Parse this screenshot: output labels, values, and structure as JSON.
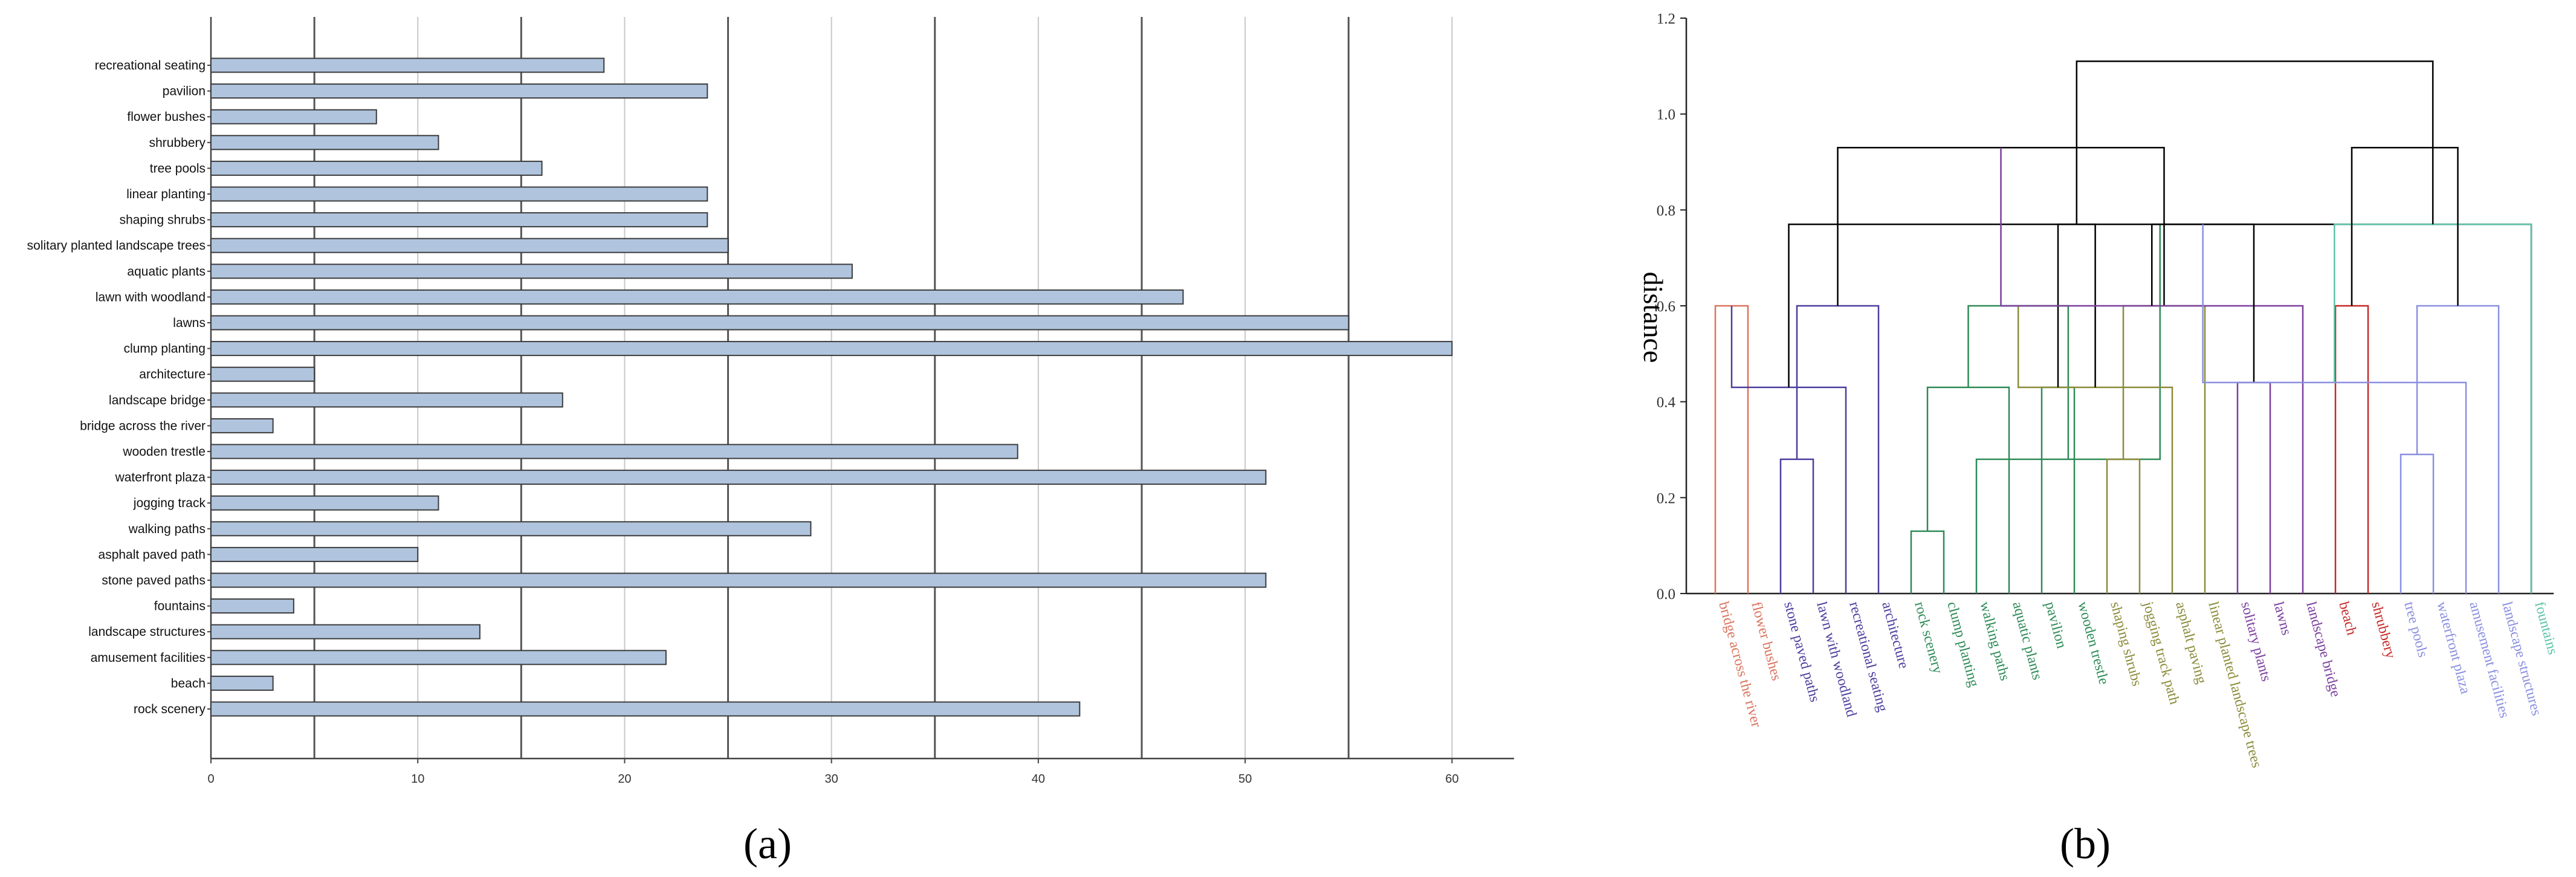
{
  "panels": {
    "a": "(a)",
    "b": "(b)"
  },
  "chart_data": [
    {
      "type": "bar",
      "orientation": "horizontal",
      "categories": [
        "recreational seating",
        "pavilion",
        "flower bushes",
        "shrubbery",
        "tree pools",
        "linear planting",
        "shaping shrubs",
        "solitary planted landscape trees",
        "aquatic plants",
        "lawn with woodland",
        "lawns",
        "clump planting",
        "architecture",
        "landscape bridge",
        "bridge across the river",
        "wooden trestle",
        "waterfront plaza",
        "jogging track",
        "walking paths",
        "asphalt paved path",
        "stone paved paths",
        "fountains",
        "landscape structures",
        "amusement facilities",
        "beach",
        "rock scenery"
      ],
      "values": [
        19,
        24,
        8,
        11,
        16,
        24,
        24,
        25,
        31,
        47,
        55,
        60,
        5,
        17,
        3,
        39,
        51,
        11,
        29,
        10,
        51,
        4,
        13,
        22,
        3,
        42
      ],
      "xlim": [
        0,
        63
      ],
      "xticks": [
        0,
        10,
        20,
        30,
        40,
        50,
        60
      ],
      "grid": "vertical every 5",
      "bar_color": "#b0c4de"
    },
    {
      "type": "dendrogram",
      "ylabel": "distance",
      "ylim": [
        0,
        1.2
      ],
      "yticks": [
        "0.0",
        "0.2",
        "0.4",
        "0.6",
        "0.8",
        "1.0",
        "1.2"
      ],
      "leaves": [
        {
          "label": "bridge across the river",
          "color": "#d9735c"
        },
        {
          "label": "flower bushes",
          "color": "#d9735c"
        },
        {
          "label": "stone paved paths",
          "color": "#4b3f9e"
        },
        {
          "label": "lawn with woodland",
          "color": "#4b3f9e"
        },
        {
          "label": "recreational seating",
          "color": "#4b3f9e"
        },
        {
          "label": "architecture",
          "color": "#4b3f9e"
        },
        {
          "label": "rock scenery",
          "color": "#2e8b57"
        },
        {
          "label": "clump planting",
          "color": "#2e8b57"
        },
        {
          "label": "walking paths",
          "color": "#2e8b57"
        },
        {
          "label": "aquatic plants",
          "color": "#2e8b57"
        },
        {
          "label": "pavilion",
          "color": "#2e8b57"
        },
        {
          "label": "wooden trestle",
          "color": "#2e8b57"
        },
        {
          "label": "shaping shrubs",
          "color": "#8b8b3a"
        },
        {
          "label": "jogging track path",
          "color": "#8b8b3a"
        },
        {
          "label": "asphalt paving",
          "color": "#8b8b3a"
        },
        {
          "label": "linear planted landscape trees",
          "color": "#8b8b3a"
        },
        {
          "label": "solitary plants",
          "color": "#7b3f9e"
        },
        {
          "label": "lawns",
          "color": "#7b3f9e"
        },
        {
          "label": "landscape bridge",
          "color": "#7b3f9e"
        },
        {
          "label": "beach",
          "color": "#c62828"
        },
        {
          "label": "shrubbery",
          "color": "#c62828"
        },
        {
          "label": "tree pools",
          "color": "#8a8fe0"
        },
        {
          "label": "waterfront plaza",
          "color": "#8a8fe0"
        },
        {
          "label": "amusement facilities",
          "color": "#8a8fe0"
        },
        {
          "label": "landscape structures",
          "color": "#8a8fe0"
        },
        {
          "label": "fountains",
          "color": "#5cc4a8"
        }
      ],
      "merges": [
        {
          "a": 0,
          "b": 1,
          "h": 0.6,
          "color": "#d9735c"
        },
        {
          "a": 2,
          "b": 3,
          "h": 0.28,
          "color": "#4b3f9e"
        },
        {
          "a": 26,
          "b": 4,
          "h": 0.43,
          "color": "#4b3f9e"
        },
        {
          "a": 27,
          "b": 5,
          "h": 0.6,
          "color": "#4b3f9e"
        },
        {
          "a": 25,
          "b": 28,
          "h": 0.77,
          "color": "#000000"
        },
        {
          "a": 6,
          "b": 7,
          "h": 0.13,
          "color": "#2e8b57"
        },
        {
          "a": 30,
          "b": 8,
          "h": 0.28,
          "color": "#2e8b57"
        },
        {
          "a": 31,
          "b": 9,
          "h": 0.43,
          "color": "#2e8b57"
        },
        {
          "a": 10,
          "b": 11,
          "h": 0.43,
          "color": "#2e8b57"
        },
        {
          "a": 32,
          "b": 33,
          "h": 0.6,
          "color": "#2e8b57"
        },
        {
          "a": 12,
          "b": 13,
          "h": 0.28,
          "color": "#8b8b3a"
        },
        {
          "a": 35,
          "b": 14,
          "h": 0.43,
          "color": "#8b8b3a"
        },
        {
          "a": 36,
          "b": 15,
          "h": 0.6,
          "color": "#8b8b3a"
        },
        {
          "a": 34,
          "b": 37,
          "h": 0.77,
          "color": "#000000"
        },
        {
          "a": 29,
          "b": 38,
          "h": 0.93,
          "color": "#000000"
        },
        {
          "a": 16,
          "b": 17,
          "h": 0.44,
          "color": "#7b3f9e"
        },
        {
          "a": 40,
          "b": 18,
          "h": 0.6,
          "color": "#7b3f9e"
        },
        {
          "a": 19,
          "b": 20,
          "h": 0.6,
          "color": "#c62828"
        },
        {
          "a": 41,
          "b": 42,
          "h": 0.77,
          "color": "#000000"
        },
        {
          "a": 21,
          "b": 22,
          "h": 0.29,
          "color": "#8a8fe0"
        },
        {
          "a": 44,
          "b": 23,
          "h": 0.44,
          "color": "#8a8fe0"
        },
        {
          "a": 45,
          "b": 24,
          "h": 0.6,
          "color": "#8a8fe0"
        },
        {
          "a": 46,
          "b": 25,
          "h": 0.77,
          "color": "#5cc4a8"
        },
        {
          "a": 43,
          "b": 47,
          "h": 0.93,
          "color": "#000000"
        },
        {
          "a": 39,
          "b": 48,
          "h": 1.11,
          "color": "#000000"
        }
      ]
    }
  ]
}
